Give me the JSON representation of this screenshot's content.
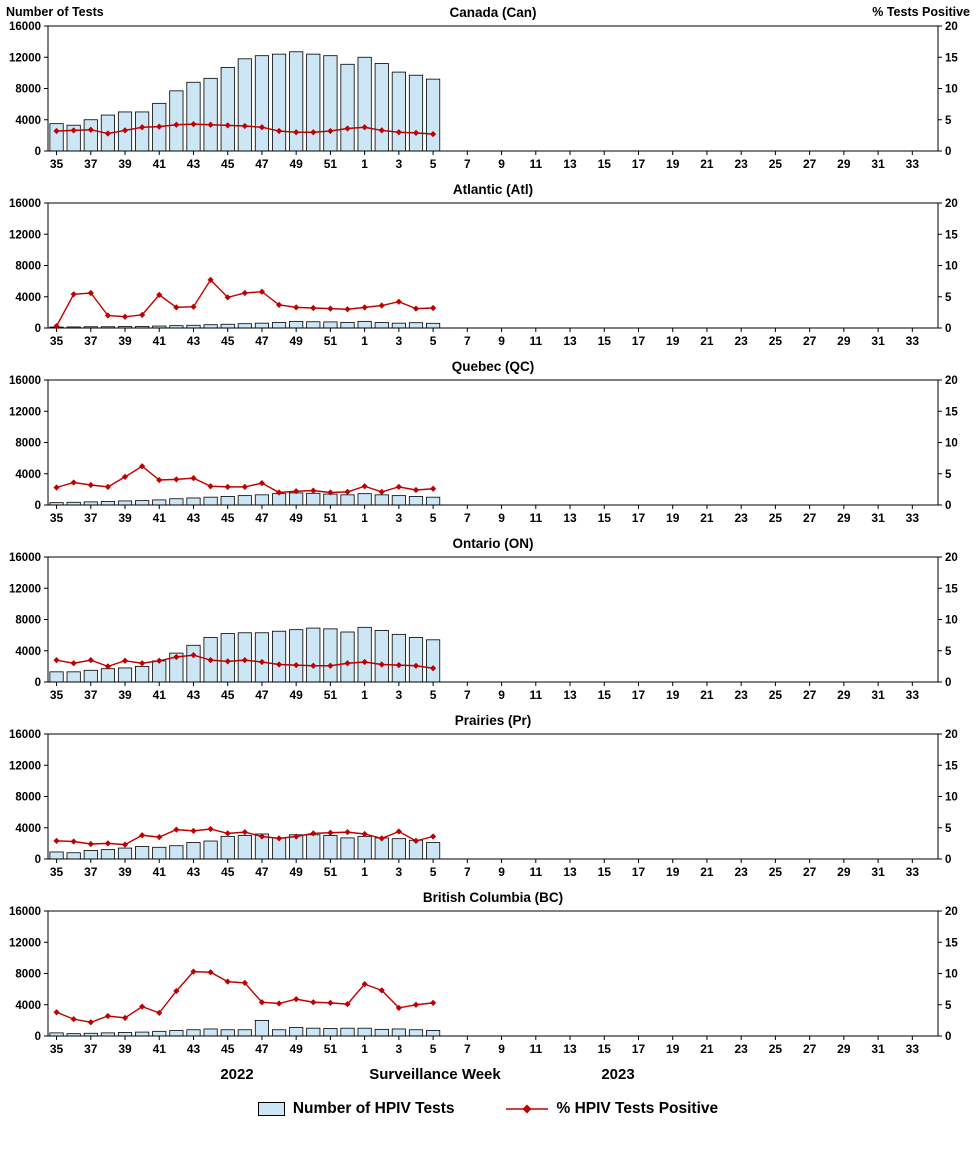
{
  "axis_titles": {
    "left": "Number of Tests",
    "right": "% Tests Positive"
  },
  "footer": {
    "year_left": "2022",
    "axis_label": "Surveillance Week",
    "year_right": "2023"
  },
  "legend": {
    "bar_label": "Number of HPIV Tests",
    "line_label": "% HPIV Tests Positive"
  },
  "colors": {
    "bar_fill": "#CDE6F5",
    "bar_stroke": "#000000",
    "line": "#C00000",
    "axis": "#000000"
  },
  "chart_data": {
    "type": "bar",
    "combo": "dual-axis bar + line, six stacked regional panels",
    "x_tick_labels": [
      "35",
      "37",
      "39",
      "41",
      "43",
      "45",
      "47",
      "49",
      "51",
      "1",
      "3",
      "5",
      "7",
      "9",
      "11",
      "13",
      "15",
      "17",
      "19",
      "21",
      "23",
      "25",
      "27",
      "29",
      "31",
      "33"
    ],
    "week_ranges": {
      "y2022": [
        35,
        52
      ],
      "y2023": [
        1,
        34
      ]
    },
    "data_weeks": [
      "35",
      "36",
      "37",
      "38",
      "39",
      "40",
      "41",
      "42",
      "43",
      "44",
      "45",
      "46",
      "47",
      "48",
      "49",
      "50",
      "51",
      "52",
      "1",
      "2",
      "3",
      "4",
      "5"
    ],
    "left_axis": {
      "label": "Number of Tests",
      "lim": [
        0,
        16000
      ],
      "ticks": [
        0,
        4000,
        8000,
        12000,
        16000
      ]
    },
    "right_axis": {
      "label": "% Tests Positive",
      "lim": [
        0,
        20
      ],
      "ticks": [
        0,
        5,
        10,
        15,
        20
      ]
    },
    "grid": false,
    "legend_position": "bottom",
    "panels": [
      {
        "id": "canada",
        "title": "Canada (Can)",
        "tests": [
          3500,
          3300,
          4000,
          4600,
          5000,
          5000,
          6100,
          7700,
          8800,
          9300,
          10700,
          11800,
          12200,
          12400,
          12700,
          12400,
          12200,
          11100,
          12000,
          11200,
          10100,
          9700,
          9200
        ],
        "pct_positive": [
          3.2,
          3.3,
          3.4,
          2.8,
          3.3,
          3.8,
          3.9,
          4.2,
          4.3,
          4.2,
          4.1,
          4.0,
          3.8,
          3.2,
          3.0,
          3.0,
          3.2,
          3.6,
          3.8,
          3.3,
          3.0,
          2.9,
          2.7
        ]
      },
      {
        "id": "atlantic",
        "title": "Atlantic (Atl)",
        "tests": [
          120,
          140,
          160,
          160,
          180,
          200,
          250,
          300,
          350,
          420,
          480,
          550,
          620,
          720,
          850,
          800,
          780,
          720,
          850,
          700,
          620,
          680,
          600
        ],
        "pct_positive": [
          0.3,
          5.4,
          5.6,
          2.0,
          1.8,
          2.1,
          5.3,
          3.3,
          3.4,
          7.7,
          4.9,
          5.6,
          5.8,
          3.7,
          3.3,
          3.2,
          3.1,
          3.0,
          3.3,
          3.6,
          4.2,
          3.1,
          3.2
        ]
      },
      {
        "id": "quebec",
        "title": "Quebec (QC)",
        "tests": [
          300,
          350,
          400,
          450,
          520,
          560,
          650,
          800,
          900,
          1000,
          1100,
          1200,
          1300,
          1450,
          1550,
          1500,
          1400,
          1300,
          1450,
          1300,
          1200,
          1100,
          1000
        ],
        "pct_positive": [
          2.8,
          3.6,
          3.2,
          2.9,
          4.5,
          6.2,
          4.0,
          4.1,
          4.3,
          3.0,
          2.9,
          2.9,
          3.5,
          2.0,
          2.2,
          2.3,
          2.0,
          2.1,
          3.0,
          2.1,
          2.9,
          2.4,
          2.6
        ]
      },
      {
        "id": "ontario",
        "title": "Ontario (ON)",
        "tests": [
          1300,
          1300,
          1500,
          1700,
          1800,
          2000,
          2700,
          3700,
          4700,
          5700,
          6200,
          6300,
          6300,
          6500,
          6700,
          6900,
          6800,
          6400,
          7000,
          6600,
          6100,
          5700,
          5400
        ],
        "pct_positive": [
          3.5,
          3.0,
          3.5,
          2.5,
          3.4,
          3.0,
          3.4,
          4.0,
          4.3,
          3.5,
          3.3,
          3.5,
          3.2,
          2.8,
          2.7,
          2.6,
          2.6,
          3.0,
          3.2,
          2.8,
          2.7,
          2.6,
          2.2
        ]
      },
      {
        "id": "prairies",
        "title": "Prairies (Pr)",
        "tests": [
          900,
          800,
          1100,
          1200,
          1400,
          1600,
          1500,
          1700,
          2100,
          2300,
          2900,
          3000,
          3200,
          2700,
          3100,
          3100,
          3000,
          2700,
          2900,
          2700,
          2600,
          2400,
          2100
        ],
        "pct_positive": [
          2.9,
          2.8,
          2.4,
          2.5,
          2.3,
          3.8,
          3.5,
          4.7,
          4.5,
          4.8,
          4.1,
          4.3,
          3.6,
          3.3,
          3.6,
          4.1,
          4.2,
          4.3,
          4.0,
          3.3,
          4.4,
          2.9,
          3.6
        ]
      },
      {
        "id": "bc",
        "title": "British Columbia (BC)",
        "tests": [
          400,
          300,
          350,
          400,
          450,
          500,
          600,
          700,
          800,
          900,
          800,
          800,
          2000,
          800,
          1100,
          1000,
          950,
          1000,
          1000,
          850,
          900,
          800,
          700
        ],
        "pct_positive": [
          3.8,
          2.7,
          2.2,
          3.2,
          2.9,
          4.7,
          3.7,
          7.2,
          10.3,
          10.2,
          8.7,
          8.5,
          5.4,
          5.2,
          5.9,
          5.4,
          5.3,
          5.1,
          8.3,
          7.3,
          4.5,
          5.0,
          5.3
        ]
      }
    ]
  }
}
